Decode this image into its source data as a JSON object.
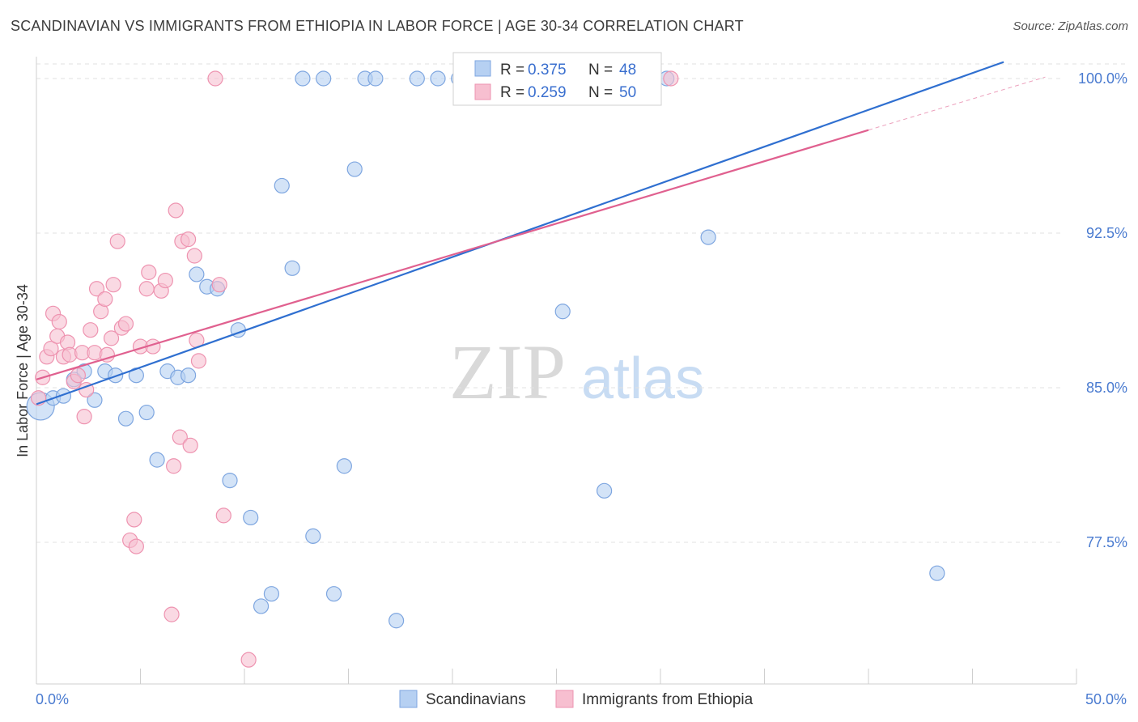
{
  "title": "SCANDINAVIAN VS IMMIGRANTS FROM ETHIOPIA IN LABOR FORCE | AGE 30-34 CORRELATION CHART",
  "source": "Source: ZipAtlas.com",
  "watermark": {
    "zip": "ZIP",
    "atlas": "atlas"
  },
  "colors": {
    "scandinavian_fill": "#b6d0f2",
    "scandinavian_stroke": "#7ea6e0",
    "scandinavian_line": "#2f6fd0",
    "ethiopia_fill": "#f7bfd0",
    "ethiopia_stroke": "#ee93b0",
    "ethiopia_line": "#e0608f",
    "tick_label": "#4a7bd0"
  },
  "legend": {
    "r_label": "R =",
    "n_label": "N =",
    "entries": [
      {
        "r": "0.375",
        "n": "48"
      },
      {
        "r": "0.259",
        "n": "50"
      }
    ]
  },
  "chart_data": {
    "type": "scatter",
    "title": "SCANDINAVIAN VS IMMIGRANTS FROM ETHIOPIA IN LABOR FORCE | AGE 30-34 CORRELATION CHART",
    "xlabel": "",
    "ylabel": "In Labor Force | Age 30-34",
    "xlim": [
      0,
      50
    ],
    "ylim": [
      70.8,
      100.8
    ],
    "y_ticks": [
      77.5,
      85.0,
      92.5,
      100.0
    ],
    "y_tick_labels": [
      "77.5%",
      "85.0%",
      "92.5%",
      "100.0%"
    ],
    "x_tick_labels": [
      "0.0%",
      "50.0%"
    ],
    "grid": true,
    "legend_position": "top-center",
    "series": [
      {
        "name": "Scandinavians",
        "r": 0.375,
        "n": 48,
        "trend": {
          "x0": 0,
          "y0": 84.2,
          "x1": 46.5,
          "y1": 100.8
        },
        "points": [
          [
            0.2,
            84.1
          ],
          [
            0.8,
            84.5
          ],
          [
            1.3,
            84.6
          ],
          [
            1.8,
            85.4
          ],
          [
            2.3,
            85.8
          ],
          [
            2.8,
            84.4
          ],
          [
            3.3,
            85.8
          ],
          [
            3.8,
            85.6
          ],
          [
            4.3,
            83.5
          ],
          [
            4.8,
            85.6
          ],
          [
            5.3,
            83.8
          ],
          [
            5.8,
            81.5
          ],
          [
            6.3,
            85.8
          ],
          [
            6.8,
            85.5
          ],
          [
            7.3,
            85.6
          ],
          [
            7.7,
            90.5
          ],
          [
            8.2,
            89.9
          ],
          [
            8.7,
            89.8
          ],
          [
            9.3,
            80.5
          ],
          [
            9.7,
            87.8
          ],
          [
            10.3,
            78.7
          ],
          [
            10.8,
            74.4
          ],
          [
            11.3,
            75.0
          ],
          [
            11.8,
            94.8
          ],
          [
            12.3,
            90.8
          ],
          [
            12.8,
            100.0
          ],
          [
            13.3,
            77.8
          ],
          [
            13.8,
            100.0
          ],
          [
            14.3,
            75.0
          ],
          [
            14.8,
            81.2
          ],
          [
            15.3,
            95.6
          ],
          [
            15.8,
            100.0
          ],
          [
            16.3,
            100.0
          ],
          [
            17.3,
            73.7
          ],
          [
            18.3,
            100.0
          ],
          [
            19.3,
            100.0
          ],
          [
            20.3,
            100.0
          ],
          [
            21.3,
            100.0
          ],
          [
            22.3,
            100.0
          ],
          [
            23.3,
            100.0
          ],
          [
            24.3,
            100.0
          ],
          [
            25.3,
            88.7
          ],
          [
            26.3,
            100.0
          ],
          [
            27.3,
            80.0
          ],
          [
            28.3,
            100.0
          ],
          [
            30.3,
            100.0
          ],
          [
            32.3,
            92.3
          ],
          [
            43.3,
            76.0
          ]
        ]
      },
      {
        "name": "Immigrants from Ethiopia",
        "r": 0.259,
        "n": 50,
        "trend": {
          "x0": 0,
          "y0": 85.4,
          "x1": 40.0,
          "y1": 97.5
        },
        "points": [
          [
            0.1,
            84.5
          ],
          [
            0.3,
            85.5
          ],
          [
            0.5,
            86.5
          ],
          [
            0.7,
            86.9
          ],
          [
            0.8,
            88.6
          ],
          [
            1.0,
            87.5
          ],
          [
            1.1,
            88.2
          ],
          [
            1.3,
            86.5
          ],
          [
            1.5,
            87.2
          ],
          [
            1.6,
            86.6
          ],
          [
            1.8,
            85.3
          ],
          [
            2.0,
            85.6
          ],
          [
            2.2,
            86.7
          ],
          [
            2.3,
            83.6
          ],
          [
            2.4,
            84.9
          ],
          [
            2.6,
            87.8
          ],
          [
            2.8,
            86.7
          ],
          [
            2.9,
            89.8
          ],
          [
            3.1,
            88.7
          ],
          [
            3.3,
            89.3
          ],
          [
            3.4,
            86.6
          ],
          [
            3.6,
            87.4
          ],
          [
            3.7,
            90.0
          ],
          [
            3.9,
            92.1
          ],
          [
            4.1,
            87.9
          ],
          [
            4.3,
            88.1
          ],
          [
            4.5,
            77.6
          ],
          [
            4.7,
            78.6
          ],
          [
            4.8,
            77.3
          ],
          [
            5.0,
            87.0
          ],
          [
            5.3,
            89.8
          ],
          [
            5.4,
            90.6
          ],
          [
            5.6,
            87.0
          ],
          [
            6.0,
            89.7
          ],
          [
            6.2,
            90.2
          ],
          [
            6.5,
            74.0
          ],
          [
            6.6,
            81.2
          ],
          [
            6.7,
            93.6
          ],
          [
            6.9,
            82.6
          ],
          [
            7.0,
            92.1
          ],
          [
            7.3,
            92.2
          ],
          [
            7.4,
            82.2
          ],
          [
            7.6,
            91.4
          ],
          [
            7.7,
            87.3
          ],
          [
            7.8,
            86.3
          ],
          [
            8.6,
            100.0
          ],
          [
            8.8,
            90.0
          ],
          [
            9.0,
            78.8
          ],
          [
            10.2,
            71.8
          ],
          [
            30.5,
            100.0
          ]
        ]
      }
    ]
  }
}
